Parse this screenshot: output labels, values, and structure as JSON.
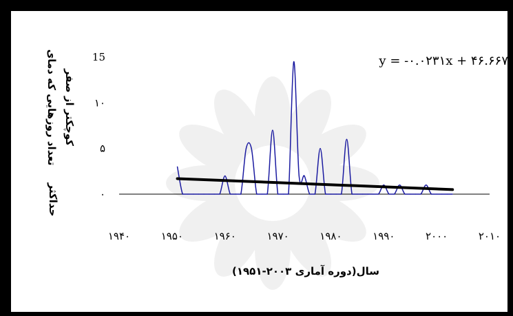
{
  "chart_data": {
    "type": "line",
    "title": "",
    "xlabel": "سال(دوره آماری ۲۰۰۳-۱۹۵۱)",
    "ylabel_lines": [
      "تعداد روزهایی که دمای",
      "کوچکتر از صفر",
      "حداکثر"
    ],
    "xlim": [
      1940,
      2010
    ],
    "ylim": [
      0,
      15
    ],
    "x_ticks": [
      1940,
      1950,
      1960,
      1970,
      1980,
      1990,
      2000,
      2010
    ],
    "x_tick_labels": [
      "۱۹۴۰",
      "۱۹۵۰",
      "۱۹۶۰",
      "۱۹۷۰",
      "۱۹۸۰",
      "۱۹۹۰",
      "۲۰۰۰",
      "۲۰۱۰"
    ],
    "y_ticks": [
      0,
      5,
      10,
      15
    ],
    "y_tick_labels": [
      "۰",
      "۵",
      "۱۰",
      "15"
    ],
    "grid": false,
    "legend": "none",
    "series": [
      {
        "color": "#1a1aa0",
        "x": [
          1951,
          1952,
          1953,
          1954,
          1955,
          1956,
          1957,
          1958,
          1959,
          1960,
          1961,
          1962,
          1963,
          1964,
          1965,
          1966,
          1967,
          1968,
          1969,
          1970,
          1971,
          1972,
          1973,
          1974,
          1975,
          1976,
          1977,
          1978,
          1979,
          1980,
          1981,
          1982,
          1983,
          1984,
          1985,
          1986,
          1987,
          1988,
          1989,
          1990,
          1991,
          1992,
          1993,
          1994,
          1995,
          1996,
          1997,
          1998,
          1999,
          2000,
          2001,
          2002,
          2003
        ],
        "y": [
          3,
          0,
          0,
          0,
          0,
          0,
          0,
          0,
          0,
          2,
          0,
          0,
          0,
          5,
          5,
          0,
          0,
          0,
          7,
          0,
          0,
          0,
          14.5,
          2,
          2,
          0,
          0,
          5,
          0,
          0,
          0,
          0,
          6,
          0,
          0,
          0,
          0,
          0,
          0,
          1,
          0,
          0,
          1,
          0,
          0,
          0,
          0,
          1,
          0,
          0,
          0,
          0,
          0
        ]
      }
    ],
    "trendline": {
      "color": "#000000",
      "x": [
        1951,
        2003
      ],
      "y": [
        1.7,
        0.5
      ],
      "equation": "y = -۰.۰۲۳۱x + ۴۶.۶۶۷"
    },
    "watermark": "light gray ornamental star-rosette watermark behind the plot"
  }
}
